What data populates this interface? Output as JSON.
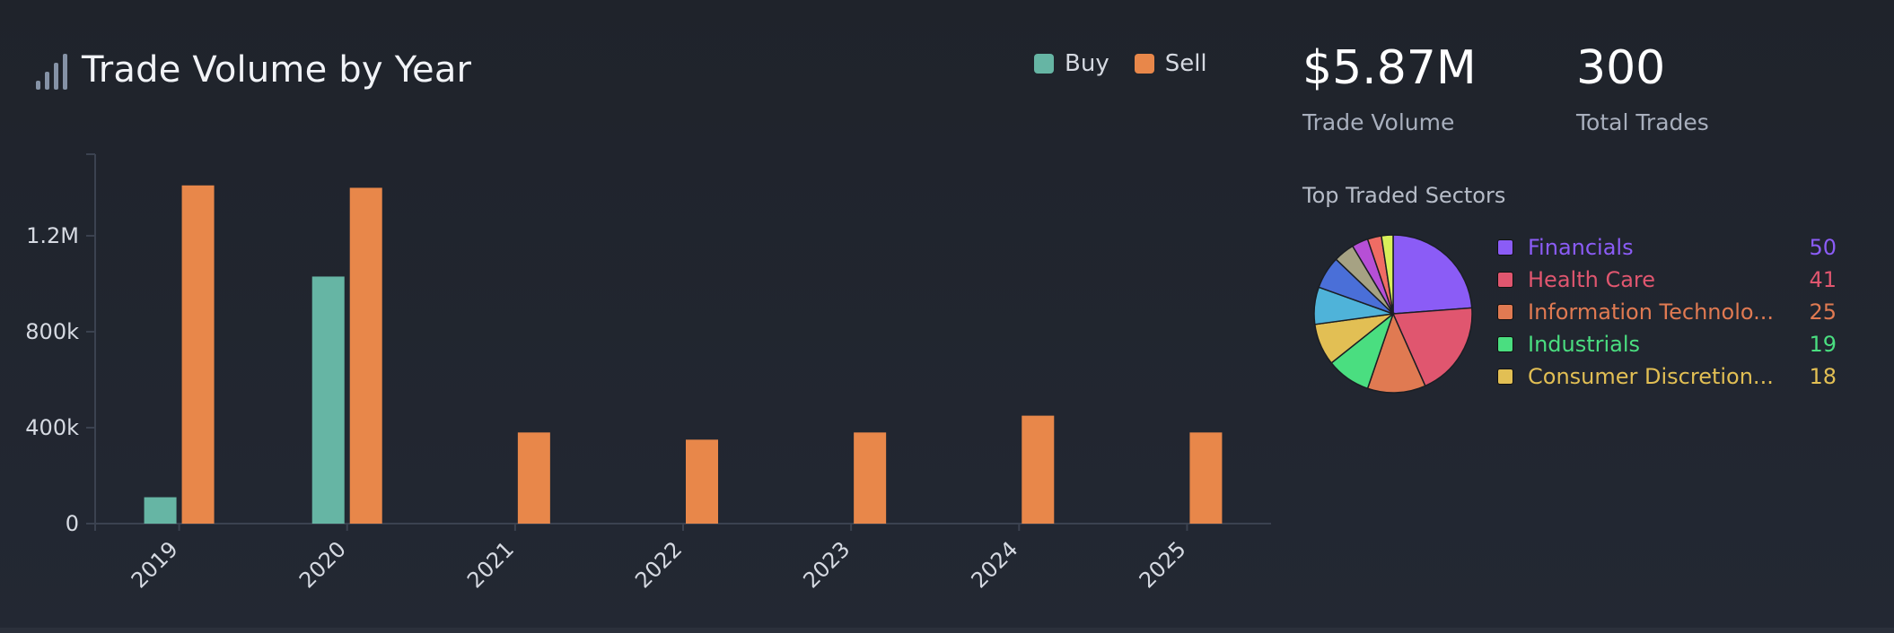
{
  "title": "Trade Volume by Year",
  "legend": [
    {
      "label": "Buy",
      "color": "#66b5a4"
    },
    {
      "label": "Sell",
      "color": "#e8874a"
    }
  ],
  "kpis": {
    "trade_volume_value": "$5.87M",
    "trade_volume_label": "Trade Volume",
    "total_trades_value": "300",
    "total_trades_label": "Total Trades"
  },
  "sectors_title": "Top Traded Sectors",
  "sectors": [
    {
      "name": "Financials",
      "count": "50",
      "color": "#8b5cf6"
    },
    {
      "name": "Health Care",
      "count": "41",
      "color": "#e0566f"
    },
    {
      "name": "Information Technolo...",
      "count": "25",
      "color": "#e07a52"
    },
    {
      "name": "Industrials",
      "count": "19",
      "color": "#4ade80"
    },
    {
      "name": "Consumer Discretion...",
      "count": "18",
      "color": "#e2bf54"
    }
  ],
  "chart_data": [
    {
      "type": "bar",
      "title": "Trade Volume by Year",
      "categories": [
        "2019",
        "2020",
        "2021",
        "2022",
        "2023",
        "2024",
        "2025"
      ],
      "series": [
        {
          "name": "Buy",
          "color": "#66b5a4",
          "values": [
            110000,
            1030000,
            0,
            0,
            0,
            0,
            0
          ]
        },
        {
          "name": "Sell",
          "color": "#e8874a",
          "values": [
            1410000,
            1400000,
            380000,
            350000,
            380000,
            450000,
            380000
          ]
        }
      ],
      "y_ticks": [
        {
          "value": 0,
          "label": "0"
        },
        {
          "value": 400000,
          "label": "400k"
        },
        {
          "value": 800000,
          "label": "800k"
        },
        {
          "value": 1200000,
          "label": "1.2M"
        }
      ],
      "ylim": [
        0,
        1540000
      ],
      "grid": false,
      "legend_position": "top-right"
    },
    {
      "type": "pie",
      "title": "Top Traded Sectors",
      "slices": [
        {
          "label": "Financials",
          "value": 50,
          "color": "#8b5cf6"
        },
        {
          "label": "Health Care",
          "value": 41,
          "color": "#e0566f"
        },
        {
          "label": "Information Technology",
          "value": 25,
          "color": "#e07a52"
        },
        {
          "label": "Industrials",
          "value": 19,
          "color": "#4ade80"
        },
        {
          "label": "Consumer Discretionary",
          "value": 18,
          "color": "#e2bf54"
        },
        {
          "label": "",
          "value": 16,
          "color": "#4fb3d9"
        },
        {
          "label": "",
          "value": 14,
          "color": "#4a6fd8"
        },
        {
          "label": "",
          "value": 9,
          "color": "#a6a283"
        },
        {
          "label": "",
          "value": 7,
          "color": "#b64fd6"
        },
        {
          "label": "",
          "value": 6,
          "color": "#f06c64"
        },
        {
          "label": "",
          "value": 5,
          "color": "#d9f05a"
        }
      ]
    }
  ]
}
